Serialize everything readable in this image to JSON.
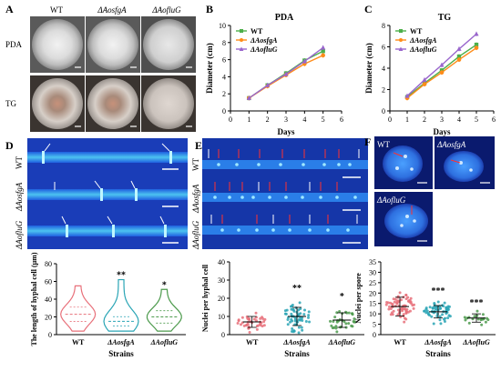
{
  "panels": {
    "A": {
      "letter": "A",
      "columns": [
        "WT",
        "ΔAosfgA",
        "ΔAofluG"
      ],
      "rows": [
        "PDA",
        "TG"
      ]
    },
    "B": {
      "letter": "B",
      "chart_data": {
        "type": "line",
        "title": "PDA",
        "xlabel": "Days",
        "ylabel": "Diameter (cm)",
        "xlim": [
          0,
          6
        ],
        "ylim": [
          0,
          10
        ],
        "xticks": [
          "0",
          "1",
          "2",
          "3",
          "4",
          "5",
          "6"
        ],
        "yticks": [
          "0",
          "2",
          "4",
          "6",
          "8",
          "10"
        ],
        "legend": "top-left",
        "x": [
          1,
          2,
          3,
          4,
          5
        ],
        "series": [
          {
            "name": "WT",
            "values": [
              1.5,
              3.0,
              4.4,
              5.9,
              7.0
            ],
            "color": "#4daf4a",
            "marker": "square"
          },
          {
            "name": "ΔAosfgA",
            "values": [
              1.5,
              2.9,
              4.2,
              5.5,
              6.5
            ],
            "color": "#ff8c1a",
            "marker": "circle"
          },
          {
            "name": "ΔAofluG",
            "values": [
              1.5,
              3.0,
              4.3,
              5.8,
              7.4
            ],
            "color": "#9966cc",
            "marker": "triangle"
          }
        ]
      }
    },
    "C": {
      "letter": "C",
      "chart_data": {
        "type": "line",
        "title": "TG",
        "xlabel": "Days",
        "ylabel": "Diameter (cm)",
        "xlim": [
          0,
          6
        ],
        "ylim": [
          0,
          8
        ],
        "xticks": [
          "0",
          "1",
          "2",
          "3",
          "4",
          "5",
          "6"
        ],
        "yticks": [
          "0",
          "2",
          "4",
          "6",
          "8"
        ],
        "legend": "top-left",
        "x": [
          1,
          2,
          3,
          4,
          5
        ],
        "series": [
          {
            "name": "WT",
            "values": [
              1.3,
              2.6,
              3.8,
              5.1,
              6.2
            ],
            "color": "#4daf4a",
            "marker": "square"
          },
          {
            "name": "ΔAosfgA",
            "values": [
              1.2,
              2.5,
              3.6,
              4.8,
              5.9
            ],
            "color": "#ff8c1a",
            "marker": "circle"
          },
          {
            "name": "ΔAofluG",
            "values": [
              1.4,
              2.9,
              4.3,
              5.8,
              7.2
            ],
            "color": "#9966cc",
            "marker": "triangle"
          }
        ]
      }
    },
    "D": {
      "letter": "D",
      "rows": [
        "WT",
        "ΔAosfgA",
        "ΔAofluG"
      ],
      "chart_data": {
        "type": "violin",
        "ylabel": "The length of hyphal cell (μm)",
        "xlabel": "Strains",
        "ylim": [
          0,
          80
        ],
        "yticks": [
          "0",
          "20",
          "40",
          "60",
          "80"
        ],
        "categories": [
          "WT",
          "ΔAosfgA",
          "ΔAofluG"
        ],
        "medians": [
          23,
          15,
          20
        ],
        "maxima": [
          55,
          62,
          51
        ],
        "significance": [
          "",
          "**",
          "*"
        ],
        "colors": [
          "#e8707a",
          "#2aa5b5",
          "#4c9a4c"
        ]
      }
    },
    "E": {
      "letter": "E",
      "rows": [
        "WT",
        "ΔAosfgA",
        "ΔAofluG"
      ],
      "chart_data": {
        "type": "scatter",
        "ylabel": "Nuclei per hyphal cell",
        "xlabel": "Strains",
        "ylim": [
          0,
          40
        ],
        "yticks": [
          "0",
          "10",
          "20",
          "30",
          "40"
        ],
        "categories": [
          "WT",
          "ΔAosfgA",
          "ΔAofluG"
        ],
        "means": [
          7,
          10,
          8
        ],
        "sd": [
          3,
          5,
          4
        ],
        "significance": [
          "",
          "**",
          "*"
        ],
        "colors": [
          "#e8707a",
          "#2aa5b5",
          "#4c9a4c"
        ]
      }
    },
    "F": {
      "letter": "F",
      "labels": [
        "WT",
        "ΔAosfgA",
        "ΔAofluG"
      ],
      "chart_data": {
        "type": "scatter",
        "ylabel": "Nuclei per spore",
        "xlabel": "Strains",
        "ylim": [
          0,
          35
        ],
        "yticks": [
          "0",
          "5",
          "10",
          "15",
          "20",
          "25",
          "30",
          "35"
        ],
        "categories": [
          "WT",
          "ΔAosfgA",
          "ΔAofluG"
        ],
        "means": [
          13.5,
          11,
          8
        ],
        "sd": [
          4.5,
          3,
          2
        ],
        "significance": [
          "",
          "***",
          "***"
        ],
        "colors": [
          "#e8707a",
          "#2aa5b5",
          "#4c9a4c"
        ]
      }
    }
  }
}
